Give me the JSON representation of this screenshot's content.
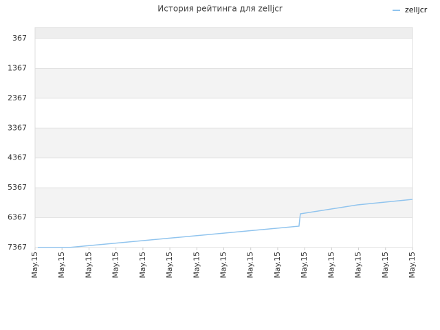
{
  "chart_data": {
    "type": "line",
    "title": "История рейтинга для zelljcr",
    "series": [
      {
        "name": "zelljcr",
        "color": "#90c4ee",
        "x": [
          0.1,
          1.25,
          9.79,
          9.84,
          11.96,
          14
        ],
        "values": [
          7367,
          7367,
          6653,
          6239,
          5939,
          5755
        ]
      }
    ],
    "xlim": [
      0,
      14
    ],
    "xticks": [
      {
        "value": 0,
        "label": "May.15"
      },
      {
        "value": 1,
        "label": "May.15"
      },
      {
        "value": 2,
        "label": "May.15"
      },
      {
        "value": 3,
        "label": "May.15"
      },
      {
        "value": 4,
        "label": "May.15"
      },
      {
        "value": 5,
        "label": "May.15"
      },
      {
        "value": 6,
        "label": "May.15"
      },
      {
        "value": 7,
        "label": "May.15"
      },
      {
        "value": 8,
        "label": "May.15"
      },
      {
        "value": 9,
        "label": "May.15"
      },
      {
        "value": 10,
        "label": "May.15"
      },
      {
        "value": 11,
        "label": "May.15"
      },
      {
        "value": 12,
        "label": "May.15"
      },
      {
        "value": 13,
        "label": "May.15"
      },
      {
        "value": 14,
        "label": "May.15"
      }
    ],
    "ylim": [
      7367,
      -2
    ],
    "yticks": [
      367,
      1367,
      2367,
      3367,
      4367,
      5367,
      6367,
      7367
    ],
    "grid": true,
    "legend": "top-right"
  }
}
